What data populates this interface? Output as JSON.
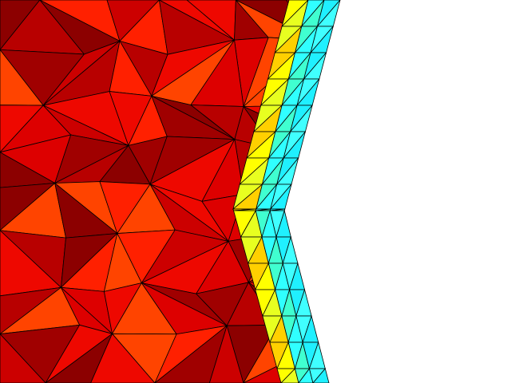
{
  "view": {
    "type": "finite-element mesh render",
    "background": "#ffffff",
    "edge_color": "#000000"
  },
  "palette": {
    "interior": [
      "#8c0000",
      "#a00000",
      "#b80000",
      "#cc0000",
      "#dd0000",
      "#ee0800",
      "#ff2000",
      "#ff4400"
    ],
    "boundary_layers": [
      {
        "name": "layer-1",
        "colors": [
          "#ffff00",
          "#e8ff20",
          "#ffd000"
        ]
      },
      {
        "name": "layer-2",
        "colors": [
          "#30ffff",
          "#40ffd0"
        ]
      },
      {
        "name": "layer-3",
        "colors": [
          "#20f0ff",
          "#40ffff"
        ]
      }
    ]
  }
}
